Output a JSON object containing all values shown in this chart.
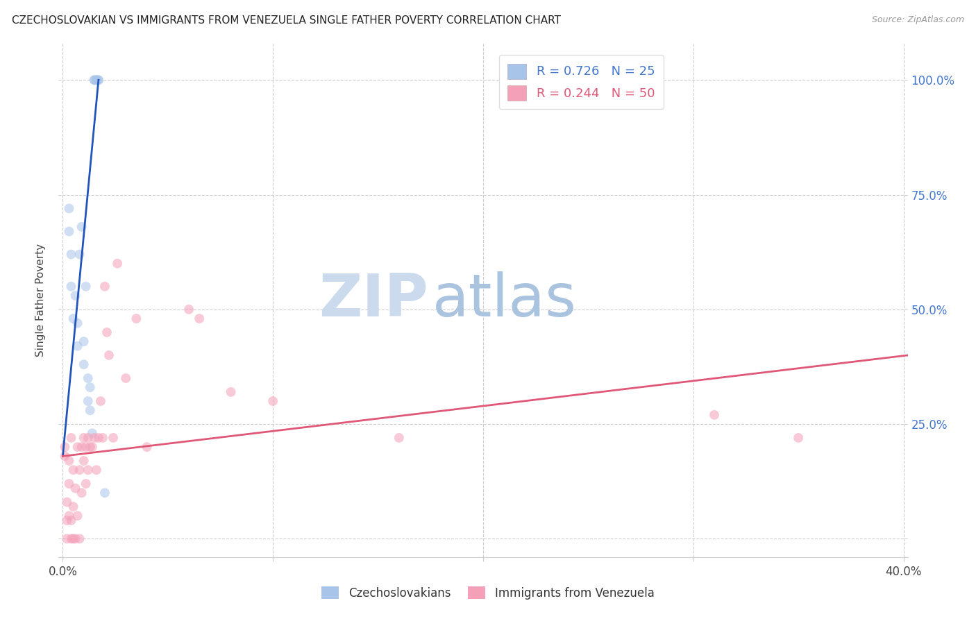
{
  "title": "CZECHOSLOVAKIAN VS IMMIGRANTS FROM VENEZUELA SINGLE FATHER POVERTY CORRELATION CHART",
  "source": "Source: ZipAtlas.com",
  "ylabel": "Single Father Poverty",
  "xlim": [
    -0.002,
    0.402
  ],
  "ylim": [
    -0.04,
    1.08
  ],
  "ytick_values": [
    0.0,
    0.25,
    0.5,
    0.75,
    1.0
  ],
  "xtick_values": [
    0.0,
    0.1,
    0.2,
    0.3,
    0.4
  ],
  "blue_scatter_x": [
    0.003,
    0.003,
    0.004,
    0.004,
    0.005,
    0.006,
    0.007,
    0.007,
    0.008,
    0.009,
    0.01,
    0.01,
    0.011,
    0.012,
    0.012,
    0.013,
    0.013,
    0.014,
    0.015,
    0.015,
    0.016,
    0.016,
    0.017,
    0.017,
    0.02
  ],
  "blue_scatter_y": [
    0.67,
    0.72,
    0.55,
    0.62,
    0.48,
    0.53,
    0.42,
    0.47,
    0.62,
    0.68,
    0.38,
    0.43,
    0.55,
    0.3,
    0.35,
    0.28,
    0.33,
    0.23,
    1.0,
    1.0,
    1.0,
    1.0,
    1.0,
    1.0,
    0.1
  ],
  "pink_scatter_x": [
    0.001,
    0.001,
    0.002,
    0.002,
    0.002,
    0.003,
    0.003,
    0.003,
    0.004,
    0.004,
    0.004,
    0.005,
    0.005,
    0.005,
    0.006,
    0.006,
    0.007,
    0.007,
    0.008,
    0.008,
    0.009,
    0.009,
    0.01,
    0.01,
    0.011,
    0.011,
    0.012,
    0.012,
    0.013,
    0.014,
    0.015,
    0.016,
    0.017,
    0.018,
    0.019,
    0.02,
    0.021,
    0.022,
    0.024,
    0.026,
    0.03,
    0.035,
    0.04,
    0.06,
    0.065,
    0.08,
    0.1,
    0.16,
    0.31,
    0.35
  ],
  "pink_scatter_y": [
    0.18,
    0.2,
    0.0,
    0.04,
    0.08,
    0.05,
    0.12,
    0.17,
    0.0,
    0.04,
    0.22,
    0.0,
    0.07,
    0.15,
    0.0,
    0.11,
    0.05,
    0.2,
    0.0,
    0.15,
    0.1,
    0.2,
    0.17,
    0.22,
    0.12,
    0.2,
    0.15,
    0.22,
    0.2,
    0.2,
    0.22,
    0.15,
    0.22,
    0.3,
    0.22,
    0.55,
    0.45,
    0.4,
    0.22,
    0.6,
    0.35,
    0.48,
    0.2,
    0.5,
    0.48,
    0.32,
    0.3,
    0.22,
    0.27,
    0.22
  ],
  "blue_line_x": [
    0.0,
    0.017
  ],
  "blue_line_y": [
    0.18,
    1.0
  ],
  "pink_line_x": [
    0.0,
    0.402
  ],
  "pink_line_y": [
    0.18,
    0.4
  ],
  "scatter_size": 100,
  "scatter_alpha": 0.55,
  "blue_color": "#a8c4e8",
  "pink_color": "#f4a0b8",
  "blue_line_color": "#2255bb",
  "pink_line_color": "#e05878",
  "background_color": "#ffffff",
  "grid_color": "#cccccc",
  "right_axis_color": "#4477cc",
  "legend_blue_label": "R = 0.726   N = 25",
  "legend_pink_label": "R = 0.244   N = 50",
  "legend_blue_color": "#a8c4e8",
  "legend_pink_color": "#f4a0b8",
  "bottom_legend_blue": "Czechoslovakians",
  "bottom_legend_pink": "Immigrants from Venezuela",
  "watermark_zip_color": "#ccdaee",
  "watermark_atlas_color": "#aac4e0"
}
